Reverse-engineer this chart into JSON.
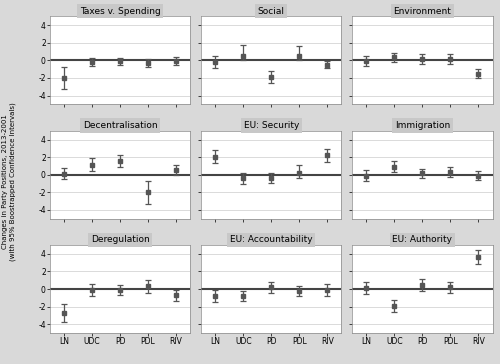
{
  "panels": [
    {
      "title": "Taxes v. Spending",
      "parties": [
        "LN",
        "UDC",
        "PD",
        "PDL",
        "RIV"
      ],
      "values": [
        -2.0,
        -0.15,
        -0.1,
        -0.35,
        -0.1
      ],
      "ci_low": [
        -3.2,
        -0.6,
        -0.5,
        -0.75,
        -0.55
      ],
      "ci_high": [
        -0.8,
        0.3,
        0.25,
        0.1,
        0.35
      ]
    },
    {
      "title": "Social",
      "parties": [
        "LN",
        "UDC",
        "PD",
        "PDL",
        "RIV"
      ],
      "values": [
        -0.2,
        0.55,
        -1.9,
        0.55,
        -0.5
      ],
      "ci_low": [
        -0.85,
        0.05,
        -2.6,
        0.05,
        -0.9
      ],
      "ci_high": [
        0.45,
        1.7,
        -1.2,
        1.6,
        -0.1
      ]
    },
    {
      "title": "Environment",
      "parties": [
        "LN",
        "UDC",
        "PD",
        "PDL",
        "RIV"
      ],
      "values": [
        -0.05,
        0.35,
        0.15,
        0.15,
        -1.5
      ],
      "ci_low": [
        -0.6,
        -0.15,
        -0.4,
        -0.4,
        -2.0
      ],
      "ci_high": [
        0.5,
        0.85,
        0.7,
        0.7,
        -1.0
      ]
    },
    {
      "title": "Decentralisation",
      "parties": [
        "LN",
        "UDC",
        "PD",
        "PDL",
        "RIV"
      ],
      "values": [
        0.1,
        1.05,
        1.55,
        -2.0,
        0.5
      ],
      "ci_low": [
        -0.5,
        0.45,
        0.85,
        -3.3,
        -0.05
      ],
      "ci_high": [
        0.75,
        1.85,
        2.25,
        -0.7,
        1.15
      ]
    },
    {
      "title": "EU: Security",
      "parties": [
        "LN",
        "UDC",
        "PD",
        "PDL",
        "RIV"
      ],
      "values": [
        2.05,
        -0.4,
        -0.35,
        0.25,
        2.2
      ],
      "ci_low": [
        1.3,
        -1.0,
        -0.95,
        -0.4,
        1.5
      ],
      "ci_high": [
        2.8,
        0.2,
        0.25,
        1.1,
        2.9
      ]
    },
    {
      "title": "Immigration",
      "parties": [
        "LN",
        "UDC",
        "PD",
        "PDL",
        "RIV"
      ],
      "values": [
        -0.1,
        0.9,
        0.15,
        0.3,
        -0.1
      ],
      "ci_low": [
        -0.7,
        0.3,
        -0.4,
        -0.25,
        -0.65
      ],
      "ci_high": [
        0.5,
        1.55,
        0.7,
        0.85,
        0.45
      ]
    },
    {
      "title": "Deregulation",
      "parties": [
        "LN",
        "UDC",
        "PD",
        "PDL",
        "RIV"
      ],
      "values": [
        -2.7,
        -0.1,
        -0.1,
        0.3,
        -0.7
      ],
      "ci_low": [
        -3.7,
        -0.75,
        -0.7,
        -0.4,
        -1.4
      ],
      "ci_high": [
        -1.7,
        0.55,
        0.5,
        1.0,
        -0.05
      ]
    },
    {
      "title": "EU: Accountability",
      "parties": [
        "LN",
        "UDC",
        "PD",
        "PDL",
        "RIV"
      ],
      "values": [
        -0.8,
        -0.8,
        0.2,
        -0.2,
        -0.1
      ],
      "ci_low": [
        -1.5,
        -1.4,
        -0.45,
        -0.75,
        -0.75
      ],
      "ci_high": [
        -0.1,
        -0.2,
        0.85,
        0.35,
        0.55
      ]
    },
    {
      "title": "EU: Authority",
      "parties": [
        "LN",
        "UDC",
        "PD",
        "PDL",
        "RIV"
      ],
      "values": [
        0.1,
        -1.9,
        0.5,
        0.2,
        3.6
      ],
      "ci_low": [
        -0.55,
        -2.55,
        -0.2,
        -0.45,
        2.8
      ],
      "ci_high": [
        0.75,
        -1.25,
        1.2,
        0.85,
        4.4
      ]
    }
  ],
  "ylabel": "Changes in Party Positions, 2013-2001\n(with 95% Boostrapped Confidence Intervals)",
  "bg_color": "#d9d9d9",
  "panel_bg": "#ffffff",
  "title_bg": "#c8c8c8",
  "marker_color": "#555555",
  "line_color": "#555555",
  "zero_line_color": "#444444",
  "ylim": [
    -5,
    5
  ],
  "yticks": [
    -4,
    -2,
    0,
    2,
    4
  ],
  "ytick_labels": [
    "-4",
    "-2",
    "0",
    "2",
    "4"
  ]
}
